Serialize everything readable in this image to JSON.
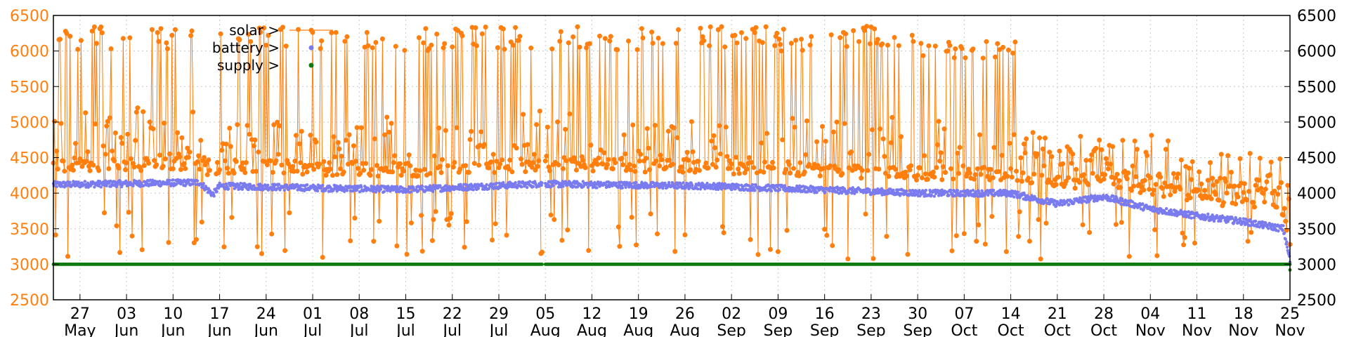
{
  "chart_data": {
    "type": "line",
    "grid": true,
    "legend_position": "top-left",
    "y_left": {
      "min": 2500,
      "max": 6500,
      "ticks": [
        2500,
        3000,
        3500,
        4000,
        4500,
        5000,
        5500,
        6000,
        6500
      ],
      "tick_labels": [
        "2500",
        "3000",
        "3500",
        "4000",
        "4500",
        "5000",
        "5500",
        "6000",
        "6500"
      ]
    },
    "y_right": {
      "min": 2500,
      "max": 6500,
      "ticks": [
        2500,
        3000,
        3500,
        4000,
        4500,
        5000,
        5500,
        6000,
        6500
      ],
      "tick_labels": [
        "2500",
        "3000",
        "3500",
        "4000",
        "4500",
        "5000",
        "5500",
        "6000",
        "6500"
      ]
    },
    "x_range": [
      "2024-05-23",
      "2024-11-25"
    ],
    "x_ticks": [
      {
        "date": "2024-05-27",
        "day": "27",
        "month": "May"
      },
      {
        "date": "2024-06-03",
        "day": "03",
        "month": "Jun"
      },
      {
        "date": "2024-06-10",
        "day": "10",
        "month": "Jun"
      },
      {
        "date": "2024-06-17",
        "day": "17",
        "month": "Jun"
      },
      {
        "date": "2024-06-24",
        "day": "24",
        "month": "Jun"
      },
      {
        "date": "2024-07-01",
        "day": "01",
        "month": "Jul"
      },
      {
        "date": "2024-07-08",
        "day": "08",
        "month": "Jul"
      },
      {
        "date": "2024-07-15",
        "day": "15",
        "month": "Jul"
      },
      {
        "date": "2024-07-22",
        "day": "22",
        "month": "Jul"
      },
      {
        "date": "2024-07-29",
        "day": "29",
        "month": "Jul"
      },
      {
        "date": "2024-08-05",
        "day": "05",
        "month": "Aug"
      },
      {
        "date": "2024-08-12",
        "day": "12",
        "month": "Aug"
      },
      {
        "date": "2024-08-19",
        "day": "19",
        "month": "Aug"
      },
      {
        "date": "2024-08-26",
        "day": "26",
        "month": "Aug"
      },
      {
        "date": "2024-09-02",
        "day": "02",
        "month": "Sep"
      },
      {
        "date": "2024-09-09",
        "day": "09",
        "month": "Sep"
      },
      {
        "date": "2024-09-16",
        "day": "16",
        "month": "Sep"
      },
      {
        "date": "2024-09-23",
        "day": "23",
        "month": "Sep"
      },
      {
        "date": "2024-09-30",
        "day": "30",
        "month": "Sep"
      },
      {
        "date": "2024-10-07",
        "day": "07",
        "month": "Oct"
      },
      {
        "date": "2024-10-14",
        "day": "14",
        "month": "Oct"
      },
      {
        "date": "2024-10-21",
        "day": "21",
        "month": "Oct"
      },
      {
        "date": "2024-10-28",
        "day": "28",
        "month": "Oct"
      },
      {
        "date": "2024-11-04",
        "day": "04",
        "month": "Nov"
      },
      {
        "date": "2024-11-11",
        "day": "11",
        "month": "Nov"
      },
      {
        "date": "2024-11-18",
        "day": "18",
        "month": "Nov"
      },
      {
        "date": "2024-11-25",
        "day": "25",
        "month": "Nov"
      }
    ],
    "series": [
      {
        "name": "solar",
        "legend_label": "solar >",
        "color": "#ff7f0e",
        "marker": "dot",
        "style": "line+points",
        "description_points": [
          {
            "x": "2024-05-23",
            "y": 4300
          },
          {
            "x": "2024-05-24",
            "y": 6300
          },
          {
            "x": "2024-05-25",
            "y": 3350
          },
          {
            "x": "2024-05-28",
            "y": 6050
          },
          {
            "x": "2024-06-01",
            "y": 3500
          },
          {
            "x": "2024-06-04",
            "y": 6100
          },
          {
            "x": "2024-06-08",
            "y": 3600
          },
          {
            "x": "2024-06-12",
            "y": 6150
          },
          {
            "x": "2024-06-15",
            "y": 4200
          },
          {
            "x": "2024-06-18",
            "y": 6000
          },
          {
            "x": "2024-06-22",
            "y": 3100
          },
          {
            "x": "2024-06-27",
            "y": 6200
          },
          {
            "x": "2024-07-02",
            "y": 3200
          },
          {
            "x": "2024-07-09",
            "y": 6100
          },
          {
            "x": "2024-07-13",
            "y": 3500
          },
          {
            "x": "2024-07-19",
            "y": 6200
          },
          {
            "x": "2024-07-24",
            "y": 3300
          },
          {
            "x": "2024-07-29",
            "y": 6350
          },
          {
            "x": "2024-08-04",
            "y": 3350
          },
          {
            "x": "2024-08-05",
            "y": 6350
          },
          {
            "x": "2024-08-10",
            "y": 3500
          },
          {
            "x": "2024-08-18",
            "y": 6150
          },
          {
            "x": "2024-08-26",
            "y": 3300
          },
          {
            "x": "2024-09-03",
            "y": 6100
          },
          {
            "x": "2024-09-12",
            "y": 3200
          },
          {
            "x": "2024-09-20",
            "y": 6100
          },
          {
            "x": "2024-09-27",
            "y": 3600
          },
          {
            "x": "2024-10-02",
            "y": 6100
          },
          {
            "x": "2024-10-08",
            "y": 3700
          },
          {
            "x": "2024-10-14",
            "y": 4600
          },
          {
            "x": "2024-10-21",
            "y": 4500
          },
          {
            "x": "2024-10-28",
            "y": 4600
          },
          {
            "x": "2024-11-04",
            "y": 4300
          },
          {
            "x": "2024-11-11",
            "y": 4100
          },
          {
            "x": "2024-11-18",
            "y": 4200
          },
          {
            "x": "2024-11-25",
            "y": 3600
          }
        ]
      },
      {
        "name": "battery",
        "legend_label": "battery >",
        "color": "#7b7bf0",
        "marker": "dot",
        "style": "points",
        "description_points": [
          {
            "x": "2024-05-23",
            "y": 4120
          },
          {
            "x": "2024-06-14",
            "y": 4150
          },
          {
            "x": "2024-06-16",
            "y": 3980
          },
          {
            "x": "2024-06-17",
            "y": 4100
          },
          {
            "x": "2024-07-15",
            "y": 4050
          },
          {
            "x": "2024-08-04",
            "y": 4130
          },
          {
            "x": "2024-08-30",
            "y": 4100
          },
          {
            "x": "2024-09-15",
            "y": 4050
          },
          {
            "x": "2024-10-01",
            "y": 4000
          },
          {
            "x": "2024-10-14",
            "y": 4000
          },
          {
            "x": "2024-10-21",
            "y": 3850
          },
          {
            "x": "2024-10-28",
            "y": 3950
          },
          {
            "x": "2024-11-04",
            "y": 3780
          },
          {
            "x": "2024-11-11",
            "y": 3680
          },
          {
            "x": "2024-11-18",
            "y": 3600
          },
          {
            "x": "2024-11-24",
            "y": 3500
          },
          {
            "x": "2024-11-25",
            "y": 3050
          }
        ]
      },
      {
        "name": "supply",
        "legend_label": "supply >",
        "color": "#107a10",
        "marker": "dot",
        "style": "points",
        "description_points": [
          {
            "x": "2024-05-23",
            "y": 3000
          },
          {
            "x": "2024-08-04",
            "y": 3000
          },
          {
            "x": "2024-08-05",
            "y": 3000
          },
          {
            "x": "2024-11-25",
            "y": 3000
          }
        ]
      }
    ]
  }
}
